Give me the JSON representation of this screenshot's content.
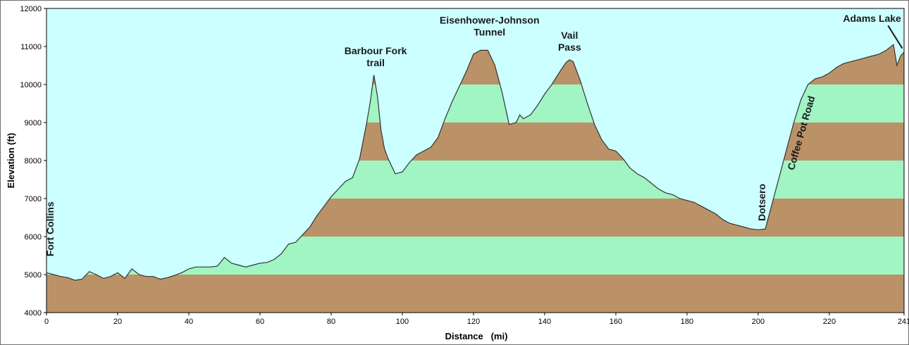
{
  "chart_data": {
    "type": "area",
    "xlabel": "Distance   (mi)",
    "ylabel": "Elevation (ft)",
    "xlim": [
      0,
      241
    ],
    "ylim": [
      4000,
      12000
    ],
    "x_ticks": [
      0,
      20,
      40,
      60,
      80,
      100,
      120,
      140,
      160,
      180,
      200,
      220,
      241
    ],
    "y_ticks": [
      4000,
      5000,
      6000,
      7000,
      8000,
      9000,
      10000,
      11000,
      12000
    ],
    "colors": {
      "sky": "#ccffff",
      "band_dark": "#bb9268",
      "band_light": "#a0f5c3",
      "outline": "#333333"
    },
    "bands": [
      {
        "from": 4000,
        "to": 5000,
        "color": "band_dark"
      },
      {
        "from": 5000,
        "to": 6000,
        "color": "band_light"
      },
      {
        "from": 6000,
        "to": 7000,
        "color": "band_dark"
      },
      {
        "from": 7000,
        "to": 8000,
        "color": "band_light"
      },
      {
        "from": 8000,
        "to": 9000,
        "color": "band_dark"
      },
      {
        "from": 9000,
        "to": 10000,
        "color": "band_light"
      },
      {
        "from": 10000,
        "to": 12000,
        "color": "band_dark"
      }
    ],
    "x": [
      0,
      2,
      4,
      6,
      8,
      10,
      12,
      14,
      16,
      18,
      20,
      22,
      24,
      26,
      28,
      30,
      32,
      34,
      36,
      38,
      40,
      42,
      44,
      46,
      48,
      50,
      52,
      54,
      56,
      58,
      60,
      62,
      64,
      66,
      68,
      70,
      72,
      74,
      76,
      78,
      80,
      82,
      84,
      86,
      88,
      90,
      91,
      92,
      93,
      94,
      95,
      96,
      98,
      100,
      102,
      104,
      106,
      108,
      110,
      112,
      114,
      116,
      118,
      120,
      122,
      124,
      126,
      128,
      130,
      132,
      133,
      134,
      135,
      136,
      138,
      140,
      142,
      144,
      146,
      147,
      148,
      150,
      152,
      154,
      156,
      158,
      160,
      162,
      164,
      166,
      168,
      170,
      172,
      174,
      176,
      178,
      180,
      182,
      184,
      186,
      188,
      190,
      192,
      194,
      196,
      198,
      200,
      202,
      204,
      206,
      208,
      210,
      212,
      214,
      216,
      218,
      220,
      222,
      224,
      226,
      228,
      230,
      232,
      234,
      236,
      238,
      239,
      240,
      241
    ],
    "y": [
      5050,
      5000,
      4950,
      4920,
      4850,
      4880,
      5080,
      5000,
      4900,
      4950,
      5050,
      4900,
      5150,
      5000,
      4950,
      4950,
      4880,
      4920,
      4980,
      5050,
      5150,
      5200,
      5200,
      5200,
      5220,
      5450,
      5300,
      5250,
      5200,
      5250,
      5300,
      5320,
      5400,
      5550,
      5800,
      5850,
      6050,
      6250,
      6550,
      6800,
      7050,
      7250,
      7450,
      7550,
      8050,
      9000,
      9550,
      10250,
      9700,
      8800,
      8300,
      8050,
      7650,
      7700,
      7950,
      8150,
      8250,
      8350,
      8600,
      9100,
      9550,
      9950,
      10350,
      10800,
      10900,
      10900,
      10500,
      9800,
      8950,
      9000,
      9200,
      9100,
      9150,
      9200,
      9450,
      9750,
      10000,
      10300,
      10580,
      10650,
      10600,
      10100,
      9500,
      8950,
      8550,
      8300,
      8250,
      8050,
      7800,
      7650,
      7550,
      7400,
      7250,
      7150,
      7100,
      7000,
      6950,
      6900,
      6800,
      6700,
      6600,
      6450,
      6350,
      6300,
      6250,
      6200,
      6180,
      6200,
      6900,
      7600,
      8300,
      9000,
      9600,
      10000,
      10150,
      10200,
      10300,
      10450,
      10550,
      10600,
      10650,
      10700,
      10750,
      10800,
      10900,
      11050,
      10500,
      10750,
      10850
    ],
    "annotations": [
      {
        "lines": [
          "Fort Collins"
        ],
        "x": 2,
        "y": 6200,
        "rotate": -90
      },
      {
        "lines": [
          "Barbour Fork",
          "trail"
        ],
        "x": 92.5,
        "y": 10800,
        "rotate": 0
      },
      {
        "lines": [
          "Eisenhower-Johnson",
          "Tunnel"
        ],
        "x": 124.5,
        "y": 11600,
        "rotate": 0
      },
      {
        "lines": [
          "Vail",
          "Pass"
        ],
        "x": 147,
        "y": 11200,
        "rotate": 0
      },
      {
        "lines": [
          "Dotsero"
        ],
        "x": 202,
        "y": 6900,
        "rotate": -90
      },
      {
        "lines": [
          "Coffee Pot Road"
        ],
        "x": 213,
        "y": 8700,
        "rotate": -74
      },
      {
        "lines": [
          "Adams Lake"
        ],
        "x": 232,
        "y": 11650,
        "rotate": 0
      }
    ],
    "pointer": {
      "from": [
        236.5,
        11550
      ],
      "to": [
        240.5,
        10950
      ]
    }
  }
}
